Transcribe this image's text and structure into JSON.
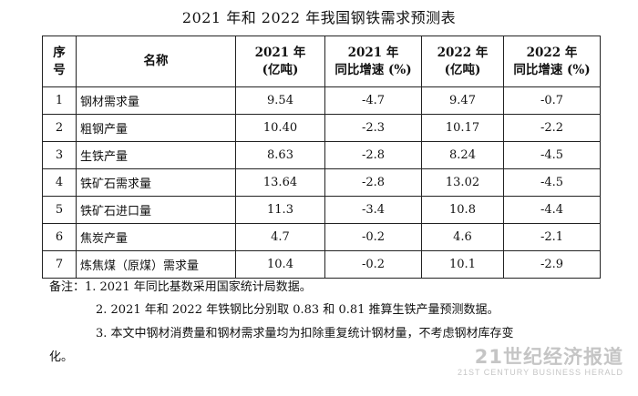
{
  "title": "2021 年和 2022 年我国钢铁需求预测表",
  "table": {
    "headers": {
      "no": [
        "序",
        "号"
      ],
      "name": "名称",
      "v2021": [
        "2021 年",
        "(亿吨)"
      ],
      "g2021": [
        "2021 年",
        "同比增速 (%)"
      ],
      "v2022": [
        "2022 年",
        "(亿吨)"
      ],
      "g2022": [
        "2022 年",
        "同比增速 (%)"
      ]
    },
    "rows": [
      {
        "no": "1",
        "name": "钢材需求量",
        "v2021": "9.54",
        "g2021": "-4.7",
        "v2022": "9.47",
        "g2022": "-0.7"
      },
      {
        "no": "2",
        "name": "粗钢产量",
        "v2021": "10.40",
        "g2021": "-2.3",
        "v2022": "10.17",
        "g2022": "-2.2"
      },
      {
        "no": "3",
        "name": "生铁产量",
        "v2021": "8.63",
        "g2021": "-2.8",
        "v2022": "8.24",
        "g2022": "-4.5"
      },
      {
        "no": "4",
        "name": "铁矿石需求量",
        "v2021": "13.64",
        "g2021": "-2.8",
        "v2022": "13.02",
        "g2022": "-4.5"
      },
      {
        "no": "5",
        "name": "铁矿石进口量",
        "v2021": "11.3",
        "g2021": "-3.4",
        "v2022": "10.8",
        "g2022": "-4.4"
      },
      {
        "no": "6",
        "name": "焦炭产量",
        "v2021": "4.7",
        "g2021": "-0.2",
        "v2022": "4.6",
        "g2022": "-2.1"
      },
      {
        "no": "7",
        "name": "炼焦煤（原煤）需求量",
        "v2021": "10.4",
        "g2021": "-0.2",
        "v2022": "10.1",
        "g2022": "-2.9"
      }
    ]
  },
  "notes": {
    "line1": "备注：1. 2021 年同比基数采用国家统计局数据。",
    "line2": "2. 2021 年和 2022 年铁钢比分别取 0.83 和 0.81 推算生铁产量预测数据。",
    "line3": "3. 本文中钢材消费量和钢材需求量均为扣除重复统计钢材量，不考虑钢材库存变",
    "line4": "化。"
  },
  "watermark": {
    "main": "21世纪经济报道",
    "sub": "21ST CENTURY BUSINESS HERALD"
  }
}
